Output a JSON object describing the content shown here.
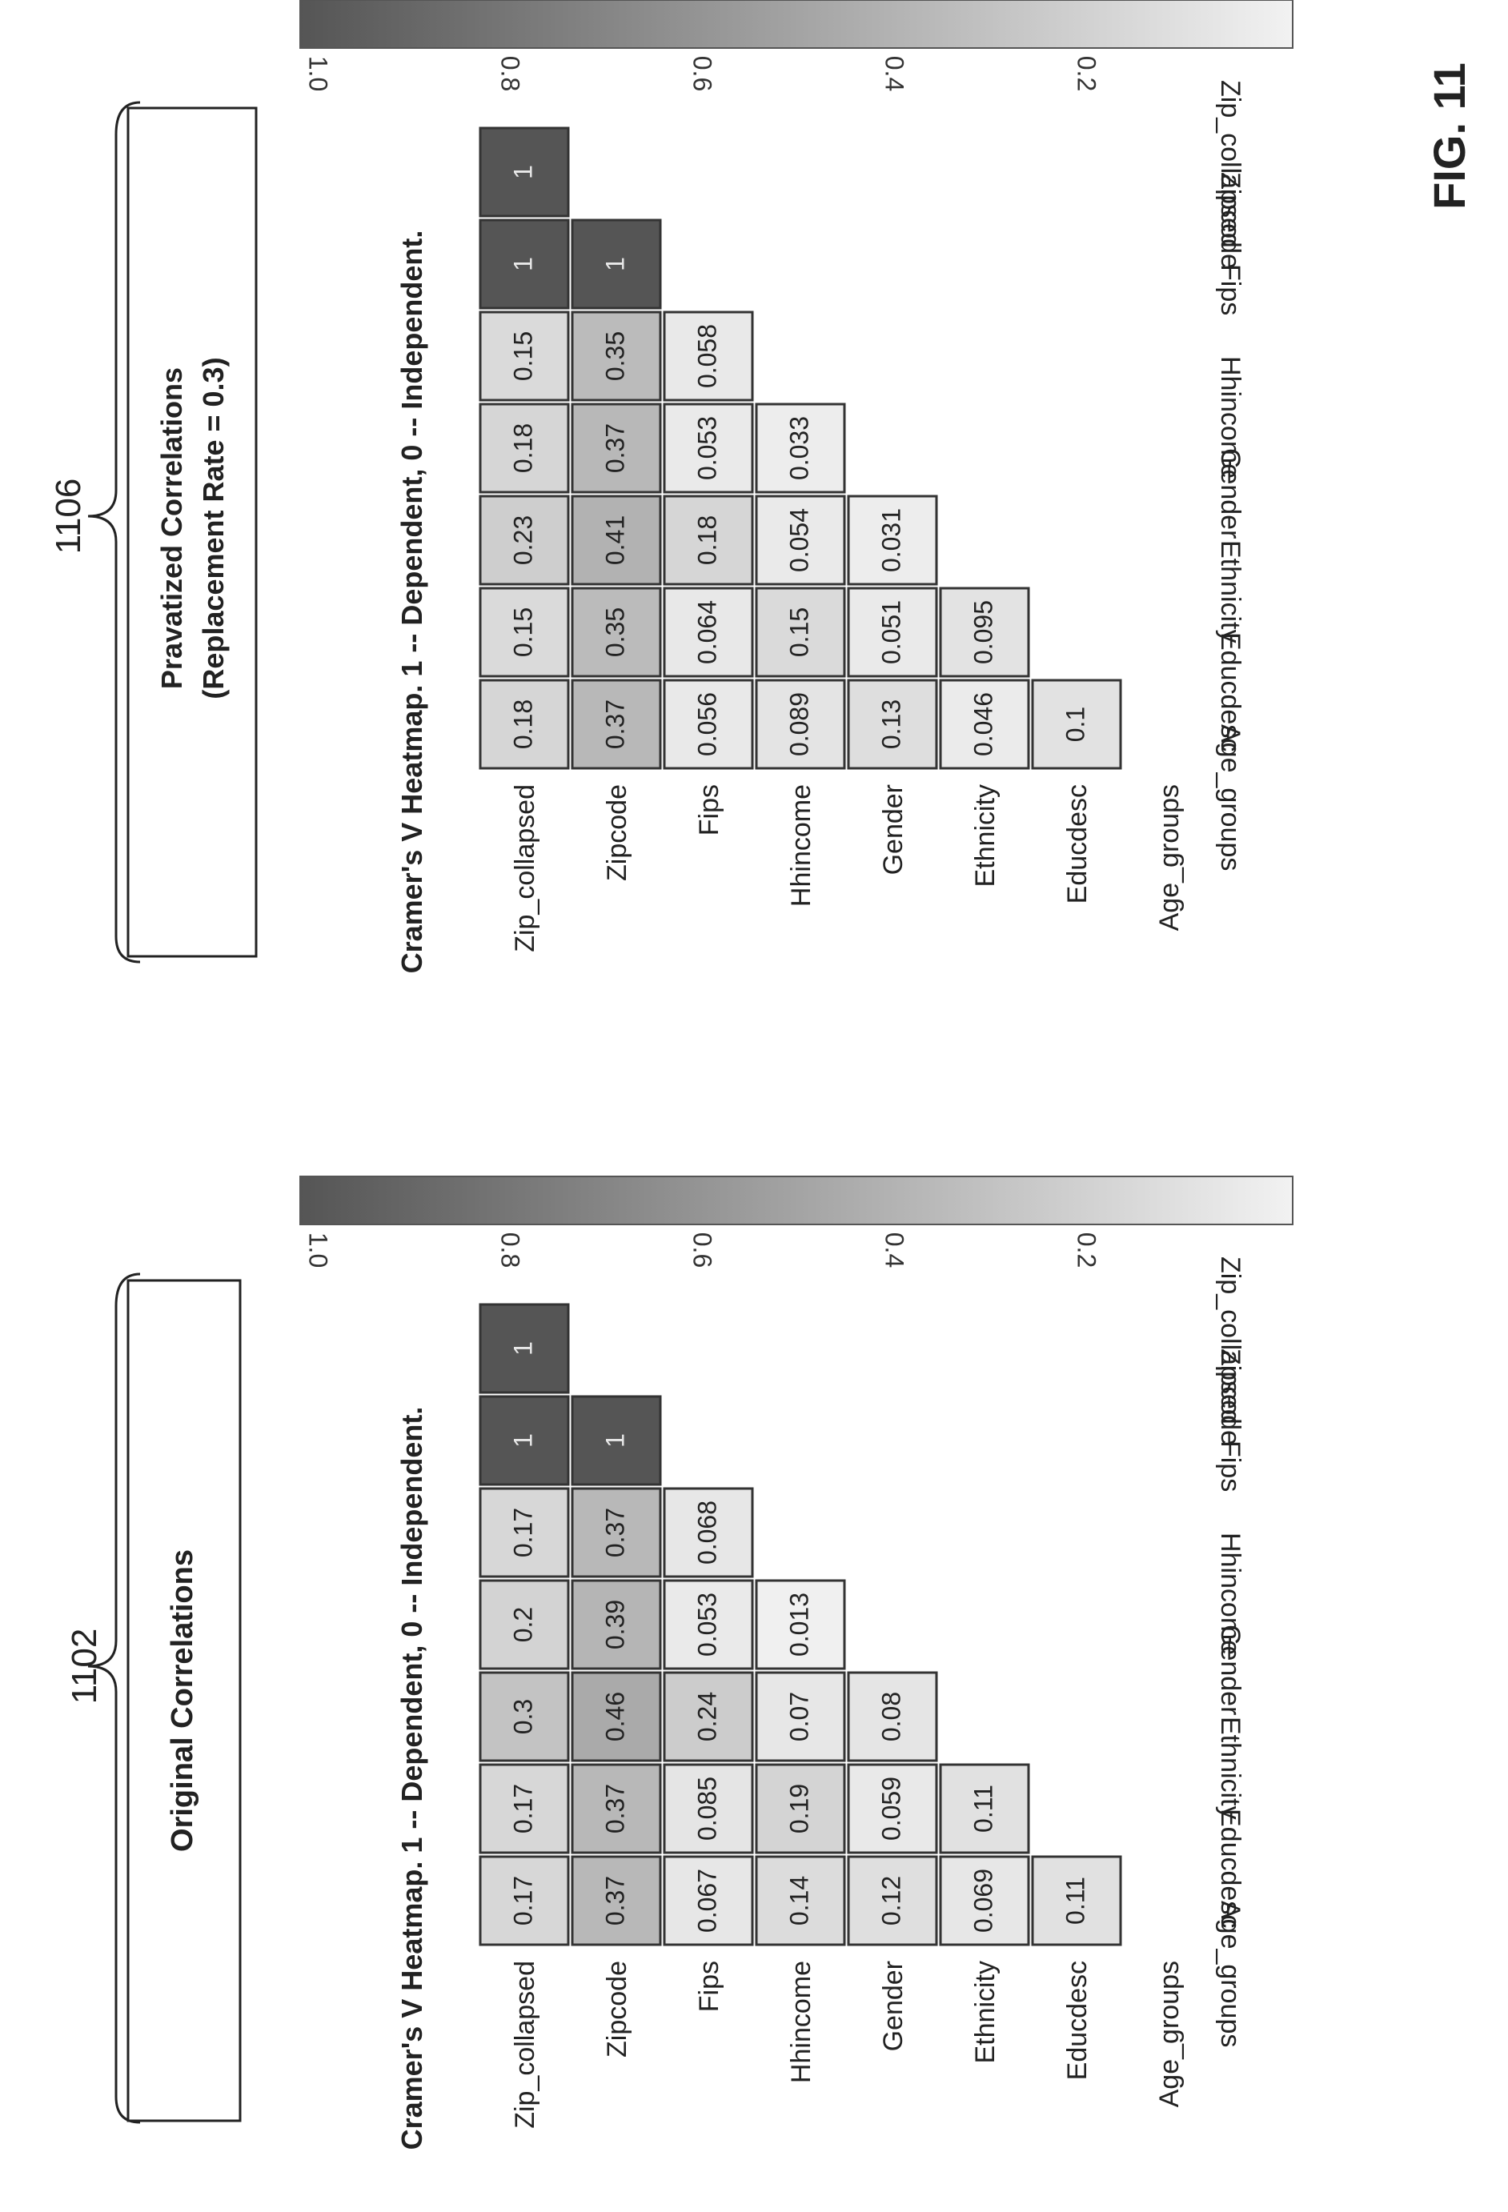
{
  "figure_label": "FIG. 11",
  "panels": [
    {
      "ref_number": "1102",
      "box_lines": [
        "Original Correlations"
      ],
      "heatmap_title": "Cramer's V Heatmap. 1 -- Dependent, 0 -- Independent."
    },
    {
      "ref_number": "1106",
      "box_lines": [
        "Pravatized Correlations",
        "(Replacement Rate = 0.3)"
      ],
      "heatmap_title": "Cramer's V Heatmap. 1 -- Dependent, 0 -- Independent."
    }
  ],
  "chart_data": [
    {
      "type": "heatmap",
      "title": "Cramer's V Heatmap. 1 -- Dependent, 0 -- Independent.",
      "row_labels": [
        "Age_groups",
        "Educdesc",
        "Ethnicity",
        "Gender",
        "Hhincome",
        "Fips",
        "Zipcode",
        "Zip_collapsed"
      ],
      "col_labels": [
        "Age_groups",
        "Educdesc",
        "Ethnicity",
        "Gender",
        "Hhincome",
        "Fips",
        "Zipcode",
        "Zip_collapsed"
      ],
      "values": [
        [
          null,
          null,
          null,
          null,
          null,
          null,
          null
        ],
        [
          "0.11",
          null,
          null,
          null,
          null,
          null,
          null
        ],
        [
          "0.069",
          "0.11",
          null,
          null,
          null,
          null,
          null
        ],
        [
          "0.12",
          "0.059",
          "0.08",
          null,
          null,
          null,
          null
        ],
        [
          "0.14",
          "0.19",
          "0.07",
          "0.013",
          null,
          null,
          null
        ],
        [
          "0.067",
          "0.085",
          "0.24",
          "0.053",
          "0.068",
          null,
          null
        ],
        [
          "0.37",
          "0.37",
          "0.46",
          "0.39",
          "0.37",
          "1",
          null
        ],
        [
          "0.17",
          "0.17",
          "0.3",
          "0.2",
          "0.17",
          "1",
          "1"
        ]
      ],
      "colorbar": {
        "ticks": [
          "1.0",
          "0.8",
          "0.6",
          "0.4",
          "0.2"
        ],
        "range": [
          0.0,
          1.0
        ],
        "dark_color": "#555555",
        "light_color": "#f2f2f2"
      }
    },
    {
      "type": "heatmap",
      "title": "Cramer's V Heatmap. 1 -- Dependent, 0 -- Independent.",
      "row_labels": [
        "Age_groups",
        "Educdesc",
        "Ethnicity",
        "Gender",
        "Hhincome",
        "Fips",
        "Zipcode",
        "Zip_collapsed"
      ],
      "col_labels": [
        "Age_groups",
        "Educdesc",
        "Ethnicity",
        "Gender",
        "Hhincome",
        "Fips",
        "Zipcode",
        "Zip_collapsed"
      ],
      "values": [
        [
          null,
          null,
          null,
          null,
          null,
          null,
          null
        ],
        [
          "0.1",
          null,
          null,
          null,
          null,
          null,
          null
        ],
        [
          "0.046",
          "0.095",
          null,
          null,
          null,
          null,
          null
        ],
        [
          "0.13",
          "0.051",
          "0.031",
          null,
          null,
          null,
          null
        ],
        [
          "0.089",
          "0.15",
          "0.054",
          "0.033",
          null,
          null,
          null
        ],
        [
          "0.056",
          "0.064",
          "0.18",
          "0.053",
          "0.058",
          null,
          null
        ],
        [
          "0.37",
          "0.35",
          "0.41",
          "0.37",
          "0.35",
          "1",
          null
        ],
        [
          "0.18",
          "0.15",
          "0.23",
          "0.18",
          "0.15",
          "1",
          "1"
        ]
      ],
      "colorbar": {
        "ticks": [
          "1.0",
          "0.8",
          "0.6",
          "0.4",
          "0.2"
        ],
        "range": [
          0.0,
          1.0
        ],
        "dark_color": "#555555",
        "light_color": "#f2f2f2"
      }
    }
  ]
}
